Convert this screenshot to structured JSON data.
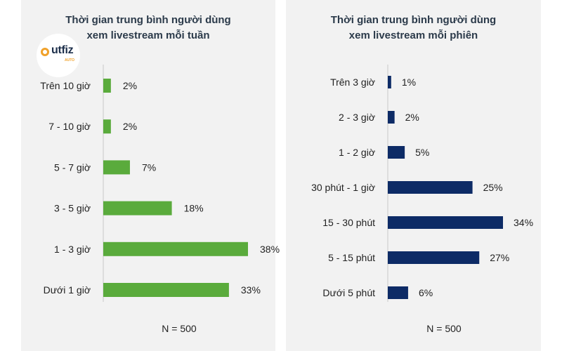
{
  "logo": {
    "text": "utfiz",
    "subtext": "AUTO"
  },
  "chart_data": [
    {
      "type": "bar",
      "orientation": "horizontal",
      "title": [
        "Thời gian trung bình người dùng",
        "xem livestream mỗi tuần"
      ],
      "categories": [
        "Trên 10 giờ",
        "7 - 10 giờ",
        "5 - 7 giờ",
        "3 - 5 giờ",
        "1 - 3 giờ",
        "Dưới 1 giờ"
      ],
      "values": [
        2,
        2,
        7,
        18,
        38,
        33
      ],
      "value_labels": [
        "2%",
        "2%",
        "7%",
        "18%",
        "38%",
        "33%"
      ],
      "unit": "%",
      "xlim": [
        0,
        38
      ],
      "color": "#5aab3c",
      "footnote": "N = 500",
      "grid": false
    },
    {
      "type": "bar",
      "orientation": "horizontal",
      "title": [
        "Thời gian trung bình người dùng",
        "xem livestream mỗi phiên"
      ],
      "categories": [
        "Trên 3 giờ",
        "2 - 3 giờ",
        "1 - 2 giờ",
        "30 phút - 1 giờ",
        "15 - 30 phút",
        "5 - 15 phút",
        "Dưới 5 phút"
      ],
      "values": [
        1,
        2,
        5,
        25,
        34,
        27,
        6
      ],
      "value_labels": [
        "1%",
        "2%",
        "5%",
        "25%",
        "34%",
        "27%",
        "6%"
      ],
      "unit": "%",
      "xlim": [
        0,
        34
      ],
      "color": "#0d2b66",
      "footnote": "N = 500",
      "grid": false
    }
  ]
}
